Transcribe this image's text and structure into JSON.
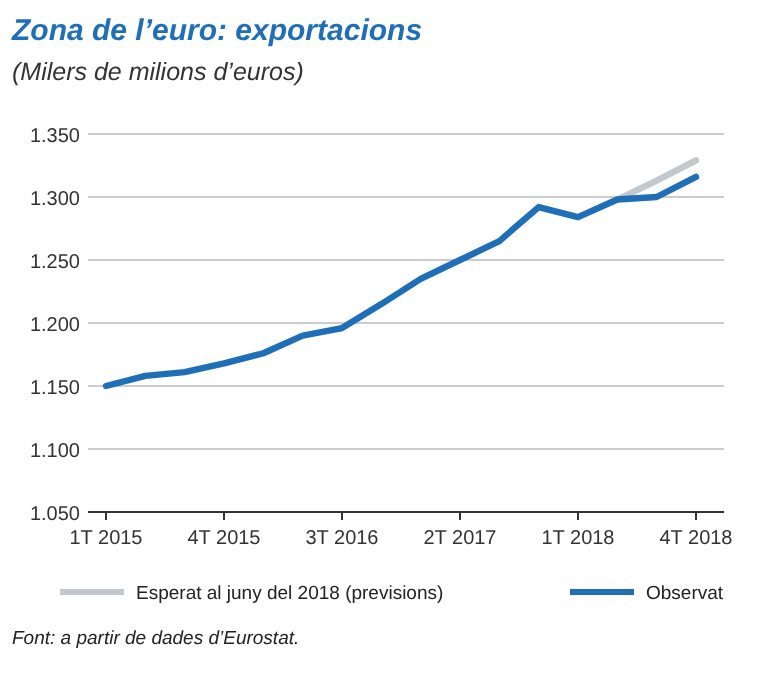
{
  "chart_data": {
    "type": "line",
    "title": "Zona de l’euro: exportacions",
    "subtitle": "(Milers de milions d’euros)",
    "categories": [
      "1T 2015",
      null,
      null,
      "4T 2015",
      null,
      null,
      "3T 2016",
      null,
      null,
      "2T 2017",
      null,
      null,
      "1T 2018",
      null,
      null,
      "4T 2018"
    ],
    "series": [
      {
        "name": "Esperat al juny del 2018 (previsions)",
        "color": "#c3c8cc",
        "values": [
          null,
          null,
          null,
          null,
          null,
          null,
          null,
          null,
          null,
          null,
          null,
          null,
          null,
          1298,
          1313,
          1329
        ]
      },
      {
        "name": "Observat",
        "color": "#1f6fb8",
        "values": [
          1150,
          1158,
          1161,
          1168,
          1176,
          1190,
          1196,
          1215,
          1235,
          1250,
          1265,
          1292,
          1284,
          1298,
          1300,
          1316
        ]
      }
    ],
    "ylim": [
      1050,
      1350
    ],
    "yticks": [
      {
        "value": 1050,
        "label": "1.050"
      },
      {
        "value": 1100,
        "label": "1.100"
      },
      {
        "value": 1150,
        "label": "1.150"
      },
      {
        "value": 1200,
        "label": "1.200"
      },
      {
        "value": 1250,
        "label": "1.250"
      },
      {
        "value": 1300,
        "label": "1.300"
      },
      {
        "value": 1350,
        "label": "1.350"
      }
    ],
    "grid": "y",
    "legend": "bottom",
    "line_style": "solid",
    "marker": "none",
    "annotations": [
      "Font: a partir de dades d’Eurostat."
    ]
  }
}
